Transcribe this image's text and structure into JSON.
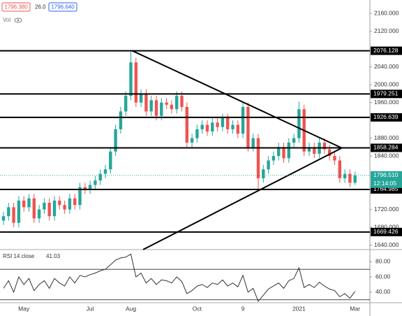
{
  "header": {
    "bid": "1796.380",
    "spread": "26.0",
    "ask": "1796.640",
    "volume_label": "Vol"
  },
  "chart_data": [
    {
      "type": "candlestick",
      "categories": [
        null,
        null,
        null,
        null,
        "May",
        null,
        null,
        null,
        null,
        null,
        null,
        null,
        null,
        null,
        null,
        null,
        null,
        "Jul",
        null,
        null,
        null,
        null,
        null,
        null,
        null,
        "Aug",
        null,
        null,
        null,
        null,
        null,
        null,
        null,
        null,
        null,
        null,
        null,
        null,
        "Oct",
        null,
        null,
        null,
        null,
        null,
        null,
        null,
        null,
        "9",
        null,
        null,
        null,
        null,
        null,
        null,
        null,
        null,
        null,
        null,
        "2021",
        null,
        null,
        null,
        null,
        null,
        null,
        null,
        null,
        null,
        null,
        "Mar"
      ],
      "open": [
        1695,
        1705,
        1725,
        1690,
        1740,
        1725,
        1745,
        1700,
        1720,
        1735,
        1705,
        1740,
        1730,
        1720,
        1745,
        1730,
        1770,
        1765,
        1775,
        1785,
        1800,
        1810,
        1850,
        1900,
        1940,
        1975,
        2050,
        1960,
        1980,
        1940,
        1965,
        1930,
        1960,
        1955,
        1945,
        1975,
        1950,
        1870,
        1880,
        1900,
        1910,
        1895,
        1915,
        1905,
        1925,
        1900,
        1910,
        1890,
        1950,
        1860,
        1880,
        1790,
        1810,
        1830,
        1840,
        1860,
        1835,
        1870,
        1880,
        1945,
        1850,
        1860,
        1845,
        1870,
        1855,
        1840,
        1830,
        1790,
        1800,
        1780
      ],
      "high": [
        1715,
        1735,
        1735,
        1750,
        1750,
        1755,
        1755,
        1730,
        1745,
        1745,
        1750,
        1750,
        1740,
        1755,
        1755,
        1780,
        1780,
        1785,
        1795,
        1810,
        1820,
        1860,
        1910,
        1950,
        1985,
        2076,
        2060,
        1990,
        1990,
        1975,
        1975,
        1970,
        1970,
        1965,
        1985,
        1985,
        1960,
        1890,
        1910,
        1920,
        1920,
        1925,
        1925,
        1935,
        1935,
        1920,
        1920,
        1960,
        1960,
        1890,
        1890,
        1820,
        1840,
        1850,
        1870,
        1870,
        1880,
        1890,
        1962,
        1955,
        1870,
        1870,
        1880,
        1880,
        1865,
        1850,
        1840,
        1810,
        1810,
        1805
      ],
      "low": [
        1685,
        1695,
        1680,
        1680,
        1715,
        1715,
        1690,
        1690,
        1710,
        1695,
        1695,
        1720,
        1710,
        1710,
        1720,
        1720,
        1755,
        1755,
        1765,
        1775,
        1790,
        1800,
        1840,
        1890,
        1930,
        1965,
        1950,
        1950,
        1930,
        1930,
        1920,
        1920,
        1945,
        1935,
        1935,
        1940,
        1860,
        1860,
        1870,
        1890,
        1885,
        1885,
        1895,
        1895,
        1890,
        1890,
        1880,
        1880,
        1850,
        1850,
        1765,
        1780,
        1800,
        1820,
        1830,
        1825,
        1825,
        1860,
        1870,
        1840,
        1840,
        1835,
        1835,
        1845,
        1830,
        1820,
        1780,
        1780,
        1770,
        1775
      ],
      "close": [
        1705,
        1725,
        1690,
        1740,
        1725,
        1745,
        1700,
        1720,
        1735,
        1705,
        1740,
        1730,
        1720,
        1745,
        1730,
        1770,
        1765,
        1775,
        1785,
        1800,
        1810,
        1850,
        1900,
        1940,
        1975,
        2050,
        1960,
        1980,
        1940,
        1965,
        1930,
        1960,
        1955,
        1945,
        1975,
        1950,
        1870,
        1880,
        1900,
        1910,
        1895,
        1915,
        1905,
        1925,
        1900,
        1910,
        1890,
        1950,
        1860,
        1880,
        1790,
        1810,
        1830,
        1840,
        1860,
        1835,
        1870,
        1880,
        1945,
        1850,
        1860,
        1845,
        1870,
        1855,
        1840,
        1830,
        1790,
        1800,
        1780,
        1796.5
      ],
      "up_color": "#26a69a",
      "down_color": "#ef5350",
      "ylim": [
        1630,
        2190
      ],
      "yticks": [
        {
          "value": 2160,
          "label": "2160.000"
        },
        {
          "value": 2120,
          "label": "2120.000"
        },
        {
          "value": 2040,
          "label": "2040.000"
        },
        {
          "value": 2000,
          "label": "2000.000"
        },
        {
          "value": 1960,
          "label": "1960.000"
        },
        {
          "value": 1880,
          "label": "1880.000"
        },
        {
          "value": 1840,
          "label": "1840.000"
        },
        {
          "value": 1720,
          "label": "1720.000"
        },
        {
          "value": 1680,
          "label": "1680.000"
        },
        {
          "value": 1640,
          "label": "1640.000"
        }
      ],
      "levels": [
        2076.128,
        1979.251,
        1926.639,
        1858.284,
        1764.985,
        1669.426
      ],
      "trendlines": [
        {
          "start": [
            25.3,
            2076
          ],
          "end": [
            66.4,
            1858
          ]
        },
        {
          "start": [
            27.4,
            1630
          ],
          "end": [
            66.4,
            1858
          ]
        }
      ],
      "price_label": {
        "value": 1796.51,
        "label": "1796.510",
        "countdown": "12:14:05",
        "color": "#26a69a"
      }
    },
    {
      "type": "line",
      "title": "RSI 14 close",
      "color": "#333333",
      "values": [
        45,
        55,
        40,
        60,
        50,
        58,
        42,
        50,
        55,
        45,
        58,
        52,
        48,
        60,
        52,
        62,
        60,
        63,
        65,
        68,
        70,
        76,
        82,
        85,
        86,
        90,
        60,
        65,
        52,
        58,
        50,
        56,
        55,
        52,
        60,
        54,
        38,
        42,
        48,
        50,
        46,
        52,
        50,
        56,
        48,
        52,
        47,
        62,
        40,
        45,
        28,
        36,
        44,
        48,
        52,
        45,
        55,
        58,
        72,
        46,
        50,
        46,
        53,
        48,
        44,
        42,
        34,
        38,
        32,
        41.03
      ],
      "ylim": [
        27,
        95
      ],
      "yticks": [
        {
          "value": 40,
          "label": "40.00"
        },
        {
          "value": 60,
          "label": "60.00"
        },
        {
          "value": 80,
          "label": "80.00"
        }
      ],
      "bands": [
        70,
        30
      ]
    }
  ]
}
